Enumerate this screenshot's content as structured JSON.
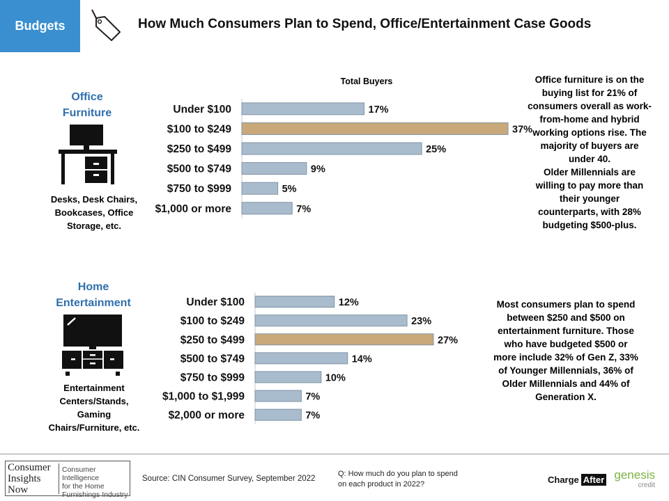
{
  "header": {
    "badge": "Budgets",
    "title": "How Much Consumers Plan to Spend, Office/Entertainment Case Goods",
    "tag_icon": "price-tag-icon",
    "badge_color": "#3a8fd0"
  },
  "office": {
    "title_line1": "Office",
    "title_line2": "Furniture",
    "icon": "desk-icon",
    "caption_line1": "Desks, Desk Chairs,",
    "caption_line2": "Bookcases, Office",
    "caption_line3": "Storage, etc.",
    "chart_header": "Total Buyers",
    "note_lines": [
      "Office furniture is on the",
      "buying list for 21% of",
      "consumers overall as work-",
      "from-home and hybrid",
      "working options rise. The",
      "majority of buyers are",
      "under 40.",
      "Older Millennials are",
      "willing to pay more than",
      "their younger",
      "counterparts, with 28%",
      "budgeting $500-plus."
    ]
  },
  "entertainment": {
    "title_line1": "Home",
    "title_line2": "Entertainment",
    "icon": "tv-stand-icon",
    "caption_line1": "Entertainment",
    "caption_line2": "Centers/Stands,",
    "caption_line3": "Gaming",
    "caption_line4": "Chairs/Furniture, etc.",
    "note_lines": [
      "Most consumers plan to spend",
      "between $250 and $500 on",
      "entertainment furniture. Those",
      "who have budgeted $500 or",
      "more include 32% of Gen Z, 33%",
      "of Younger Millennials, 36% of",
      "Older Millennials and 44% of",
      "Generation X."
    ]
  },
  "chart_data": [
    {
      "type": "bar",
      "orientation": "horizontal",
      "title": "Total Buyers",
      "categories": [
        "Under $100",
        "$100 to $249",
        "$250 to $499",
        "$500 to $749",
        "$750 to $999",
        "$1,000 or more"
      ],
      "values": [
        17,
        37,
        25,
        9,
        5,
        7
      ],
      "value_suffix": "%",
      "highlight_index": 1,
      "colors": {
        "bar": "#a9bccd",
        "highlight": "#c9a97a",
        "border": "#7f93a6"
      }
    },
    {
      "type": "bar",
      "orientation": "horizontal",
      "title": "",
      "categories": [
        "Under $100",
        "$100 to $249",
        "$250 to $499",
        "$500 to $749",
        "$750 to $999",
        "$1,000 to $1,999",
        "$2,000 or more"
      ],
      "values": [
        12,
        23,
        27,
        14,
        10,
        7,
        7
      ],
      "value_suffix": "%",
      "highlight_index": 2,
      "colors": {
        "bar": "#a9bccd",
        "highlight": "#c9a97a",
        "border": "#7f93a6"
      }
    }
  ],
  "footer": {
    "logo_name_line1": "Consumer",
    "logo_name_line2": "Insights",
    "logo_name_line3": "Now",
    "logo_tagline_line1": "Consumer Intelligence",
    "logo_tagline_line2": "for the Home",
    "logo_tagline_line3": "Furnishings Industry",
    "source": "Source: CIN Consumer Survey, September  2022",
    "question_line1": "Q: How much do you plan to spend",
    "question_line2": "on each product in 2022?",
    "charge_part1": "Charge",
    "charge_part2": "After",
    "genesis_part1": "genesis",
    "genesis_part2": "credit"
  }
}
